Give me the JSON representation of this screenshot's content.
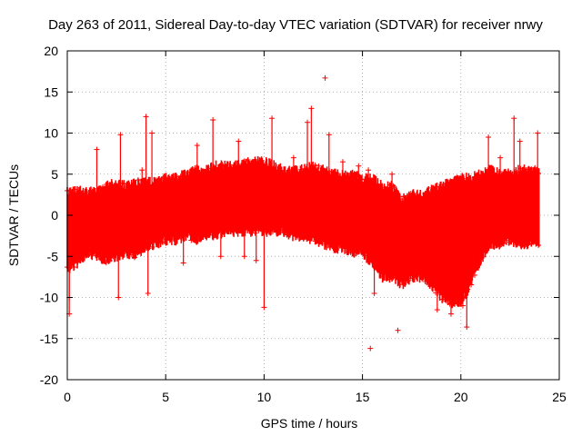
{
  "chart_data": {
    "type": "scatter",
    "title": "Day 263 of 2011, Sidereal Day-to-day VTEC variation (SDTVAR) for receiver nrwy",
    "xlabel": "GPS time / hours",
    "ylabel": "SDTVAR / TECUs",
    "xlim": [
      0,
      25
    ],
    "ylim": [
      -20,
      20
    ],
    "xticks": [
      "0",
      "5",
      "10",
      "15",
      "20",
      "25"
    ],
    "yticks": [
      "20",
      "15",
      "10",
      "5",
      "0",
      "-5",
      "-10",
      "-15",
      "-20"
    ],
    "grid": true,
    "marker": "plus",
    "color": "#ff0000",
    "series": [
      {
        "name": "SDTVAR",
        "envelope": [
          [
            0.0,
            -6.0,
            2.5
          ],
          [
            0.5,
            -5.5,
            2.5
          ],
          [
            1.0,
            -4.0,
            2.2
          ],
          [
            1.5,
            -4.5,
            2.5
          ],
          [
            2.0,
            -5.0,
            3.0
          ],
          [
            2.5,
            -4.5,
            3.5
          ],
          [
            3.0,
            -4.0,
            3.0
          ],
          [
            3.5,
            -4.5,
            3.5
          ],
          [
            4.0,
            -3.5,
            3.5
          ],
          [
            4.5,
            -3.0,
            3.5
          ],
          [
            5.0,
            -2.5,
            4.0
          ],
          [
            5.5,
            -2.5,
            4.0
          ],
          [
            6.0,
            -2.0,
            4.5
          ],
          [
            6.5,
            -2.5,
            5.0
          ],
          [
            7.0,
            -2.0,
            5.0
          ],
          [
            7.5,
            -2.0,
            5.5
          ],
          [
            8.0,
            -1.5,
            5.5
          ],
          [
            8.5,
            -1.5,
            5.5
          ],
          [
            9.0,
            -1.5,
            6.0
          ],
          [
            9.5,
            -1.5,
            6.0
          ],
          [
            10.0,
            -1.5,
            6.0
          ],
          [
            10.5,
            -1.5,
            5.5
          ],
          [
            11.0,
            -1.5,
            5.0
          ],
          [
            11.5,
            -2.0,
            5.0
          ],
          [
            12.0,
            -2.0,
            5.0
          ],
          [
            12.5,
            -2.5,
            5.5
          ],
          [
            13.0,
            -3.0,
            5.0
          ],
          [
            13.5,
            -3.5,
            4.5
          ],
          [
            14.0,
            -3.5,
            4.5
          ],
          [
            14.5,
            -4.0,
            4.5
          ],
          [
            15.0,
            -4.0,
            4.0
          ],
          [
            15.5,
            -5.5,
            4.0
          ],
          [
            16.0,
            -7.0,
            3.0
          ],
          [
            16.5,
            -7.0,
            3.0
          ],
          [
            17.0,
            -8.0,
            1.5
          ],
          [
            17.5,
            -7.0,
            2.0
          ],
          [
            18.0,
            -7.0,
            2.0
          ],
          [
            18.5,
            -8.0,
            2.5
          ],
          [
            19.0,
            -9.5,
            3.0
          ],
          [
            19.5,
            -10.5,
            3.5
          ],
          [
            20.0,
            -10.0,
            4.0
          ],
          [
            20.5,
            -8.0,
            4.0
          ],
          [
            21.0,
            -5.0,
            4.5
          ],
          [
            21.5,
            -3.0,
            5.0
          ],
          [
            22.0,
            -3.0,
            4.5
          ],
          [
            22.5,
            -2.5,
            4.5
          ],
          [
            23.0,
            -3.0,
            5.0
          ],
          [
            23.5,
            -3.0,
            5.0
          ],
          [
            24.0,
            -3.0,
            5.0
          ]
        ],
        "spikes": [
          [
            0.1,
            -12.0
          ],
          [
            0.1,
            -10.0
          ],
          [
            0.7,
            2.5
          ],
          [
            1.5,
            8.0
          ],
          [
            2.6,
            -10.0
          ],
          [
            2.7,
            9.8
          ],
          [
            3.8,
            5.5
          ],
          [
            4.0,
            12.0
          ],
          [
            4.1,
            -9.5
          ],
          [
            4.3,
            10.0
          ],
          [
            5.9,
            -5.8
          ],
          [
            6.6,
            8.5
          ],
          [
            7.4,
            11.6
          ],
          [
            7.8,
            -5.0
          ],
          [
            8.7,
            9.0
          ],
          [
            9.0,
            -5.0
          ],
          [
            9.6,
            -5.5
          ],
          [
            10.0,
            -11.2
          ],
          [
            10.4,
            11.8
          ],
          [
            11.5,
            7.0
          ],
          [
            12.2,
            11.3
          ],
          [
            12.4,
            13.0
          ],
          [
            13.1,
            16.7
          ],
          [
            13.3,
            9.8
          ],
          [
            14.0,
            6.5
          ],
          [
            14.8,
            6.0
          ],
          [
            15.3,
            5.5
          ],
          [
            15.4,
            -16.2
          ],
          [
            15.6,
            -9.5
          ],
          [
            16.5,
            5.0
          ],
          [
            16.8,
            -14.0
          ],
          [
            17.3,
            -8.0
          ],
          [
            18.8,
            -11.5
          ],
          [
            19.5,
            -12.0
          ],
          [
            20.1,
            -11.0
          ],
          [
            20.3,
            -13.6
          ],
          [
            21.4,
            9.5
          ],
          [
            22.0,
            7.0
          ],
          [
            22.7,
            11.8
          ],
          [
            23.0,
            9.0
          ],
          [
            23.9,
            10.0
          ]
        ]
      }
    ]
  }
}
